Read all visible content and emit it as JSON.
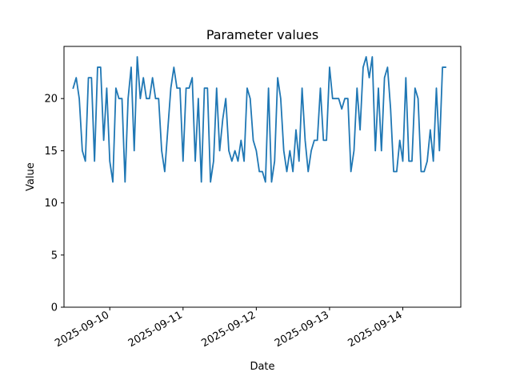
{
  "chart_data": {
    "type": "line",
    "title": "Parameter values",
    "xlabel": "Date",
    "ylabel": "Value",
    "xlim": [
      "2025-09-09T09:00",
      "2025-09-14T19:00"
    ],
    "ylim": [
      0,
      25
    ],
    "yticks": [
      0,
      5,
      10,
      15,
      20
    ],
    "xticks": [
      "2025-09-10",
      "2025-09-11",
      "2025-09-12",
      "2025-09-13",
      "2025-09-14"
    ],
    "grid": false,
    "series": [
      {
        "color": "#1f77b4",
        "x_start": "2025-09-09T12:00",
        "x_step_hours": 1,
        "values": [
          21,
          22,
          20,
          15,
          14,
          22,
          22,
          14,
          23,
          23,
          16,
          21,
          14,
          12,
          21,
          20,
          20,
          12,
          20,
          23,
          15,
          24,
          20,
          22,
          20,
          20,
          22,
          20,
          20,
          15,
          13,
          17,
          21,
          23,
          21,
          21,
          14,
          21,
          21,
          22,
          14,
          20,
          12,
          21,
          21,
          12,
          14,
          21,
          15,
          18,
          20,
          15,
          14,
          15,
          14,
          16,
          14,
          21,
          20,
          16,
          15,
          13,
          13,
          12,
          21,
          12,
          14,
          22,
          20,
          15,
          13,
          15,
          13,
          17,
          14,
          21,
          16,
          13,
          15,
          16,
          16,
          21,
          16,
          16,
          23,
          20,
          20,
          20,
          19,
          20,
          20,
          13,
          15,
          21,
          17,
          23,
          24,
          22,
          24,
          15,
          21,
          15,
          22,
          23,
          19,
          13,
          13,
          16,
          14,
          22,
          14,
          14,
          21,
          20,
          13,
          13,
          14,
          17,
          14,
          21,
          15,
          23,
          23
        ]
      }
    ]
  }
}
